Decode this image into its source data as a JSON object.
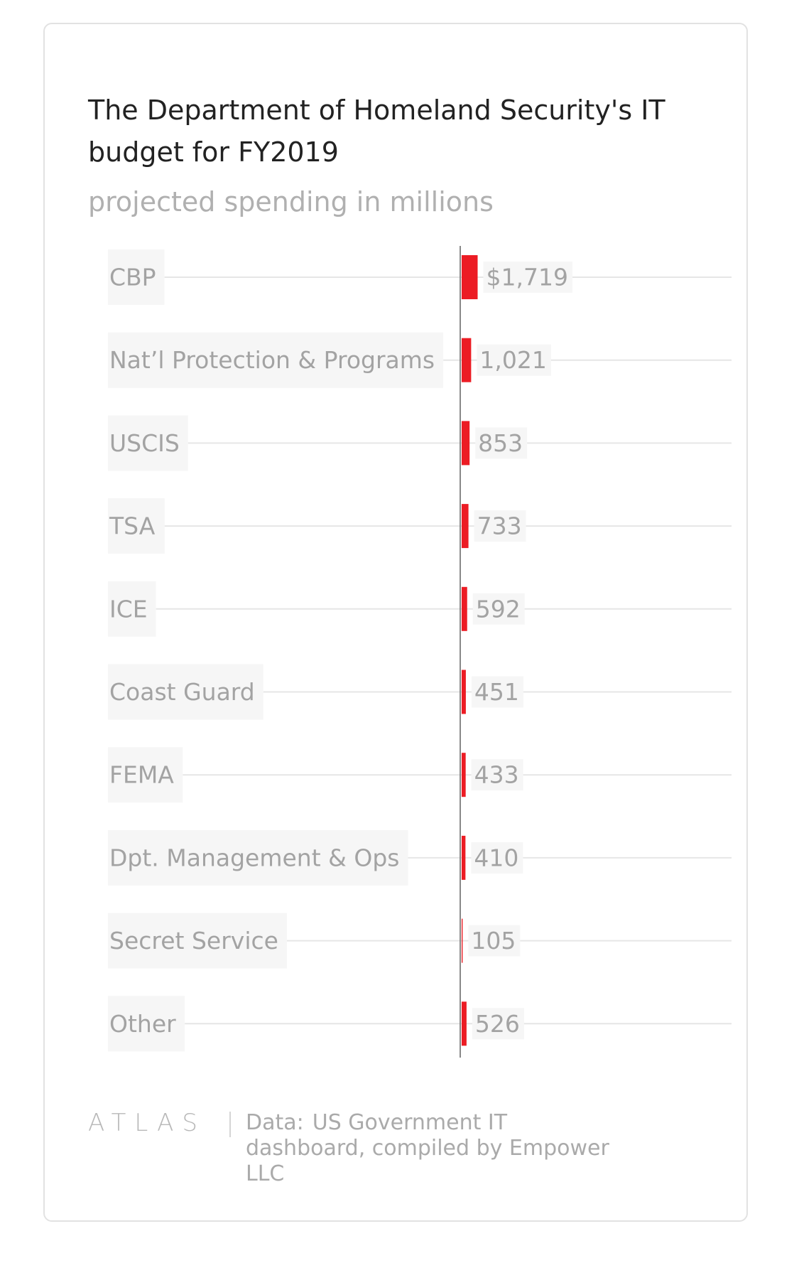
{
  "chart_data": {
    "type": "bar",
    "orientation": "horizontal",
    "title": "The Department of Homeland Security's IT budget for FY2019",
    "subtitle": "projected spending in millions",
    "categories": [
      "CBP",
      "Nat’l Protection & Programs",
      "USCIS",
      "TSA",
      "ICE",
      "Coast Guard",
      "FEMA",
      "Dpt. Management & Ops",
      "Secret Service",
      "Other"
    ],
    "values": [
      1719,
      1021,
      853,
      733,
      592,
      451,
      433,
      410,
      105,
      526
    ],
    "value_labels": [
      "$1,719",
      "1,021",
      "853",
      "733",
      "592",
      "451",
      "433",
      "410",
      "105",
      "526"
    ],
    "color": "#ec1c24",
    "footer": {
      "logo": "ATLAS",
      "source_label": "Data:",
      "source": "US Government IT dashboard, compiled by Empower LLC"
    }
  }
}
